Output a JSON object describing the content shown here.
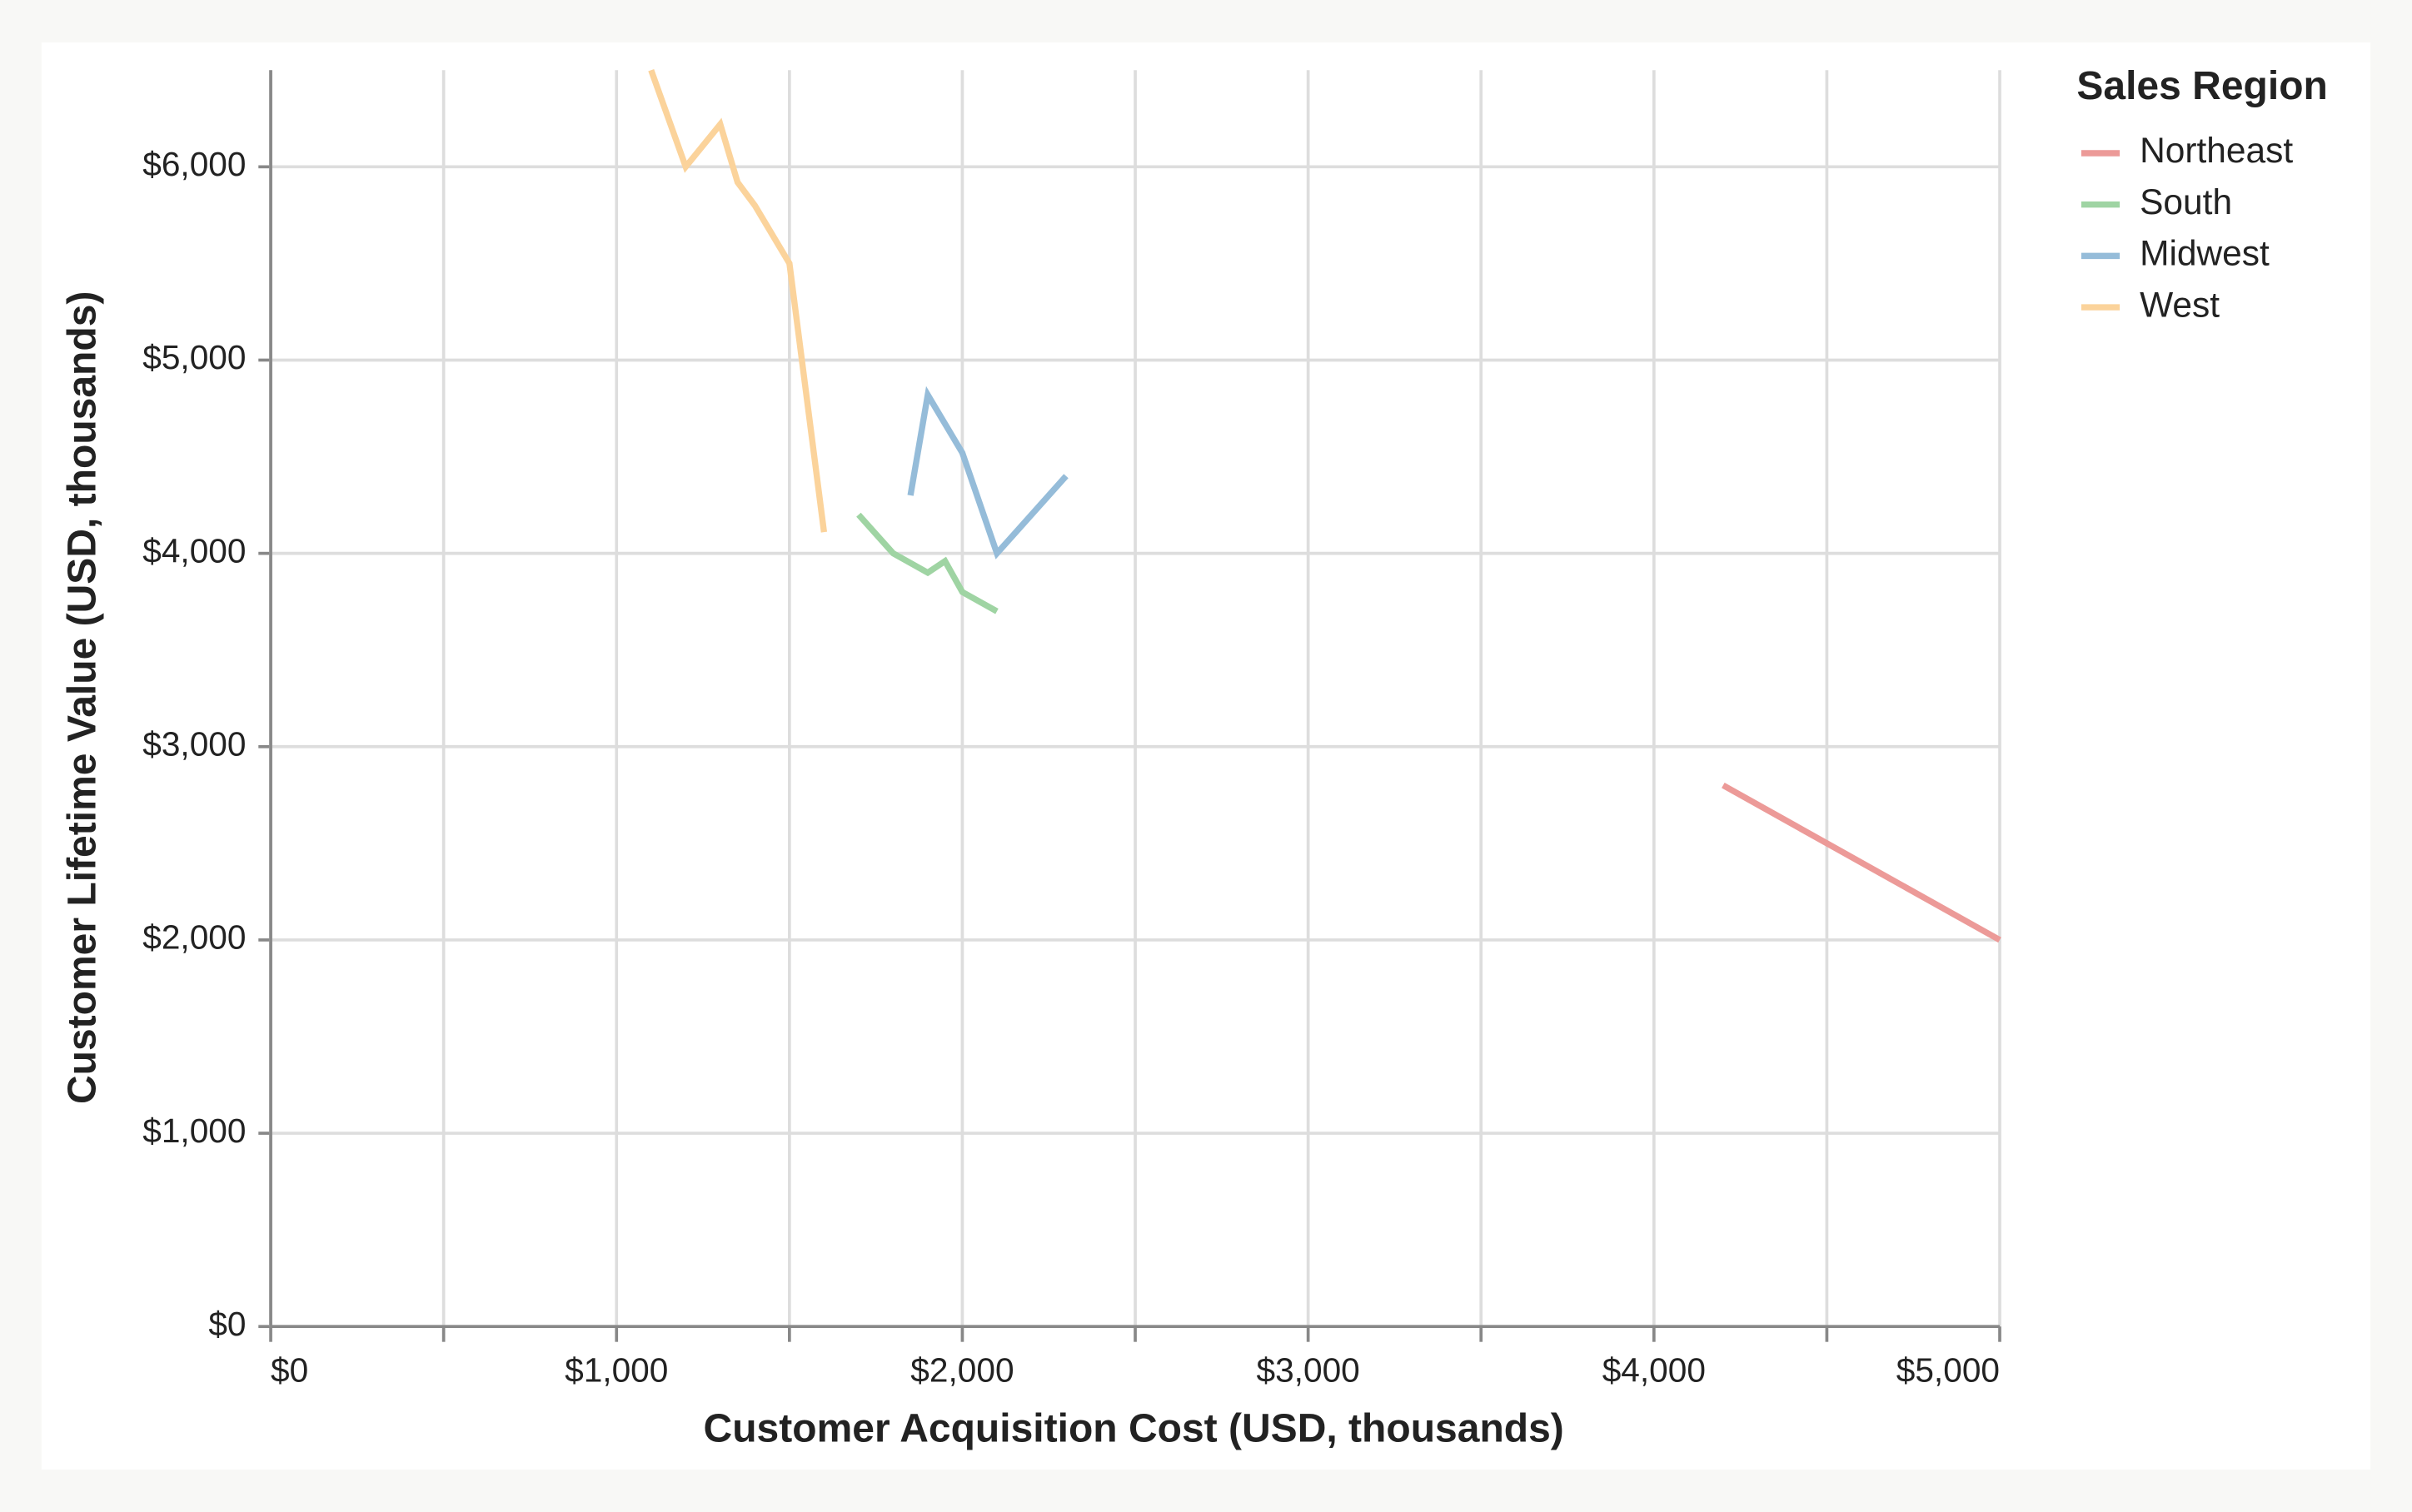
{
  "chart_data": {
    "type": "line",
    "x_label": "Customer Acquisition Cost (USD, thousands)",
    "y_label": "Customer Lifetime Value (USD, thousands)",
    "legend_title": "Sales Region",
    "legend_position": "right",
    "grid": true,
    "xlim": [
      0,
      5000
    ],
    "ylim": [
      0,
      6500
    ],
    "xticks": [
      {
        "value": 0,
        "label": "$0"
      },
      {
        "value": 1000,
        "label": "$1,000"
      },
      {
        "value": 2000,
        "label": "$2,000"
      },
      {
        "value": 3000,
        "label": "$3,000"
      },
      {
        "value": 4000,
        "label": "$4,000"
      },
      {
        "value": 5000,
        "label": "$5,000"
      }
    ],
    "xminorticks": [
      500,
      1500,
      2500,
      3500,
      4500
    ],
    "yticks": [
      {
        "value": 0,
        "label": "$0"
      },
      {
        "value": 1000,
        "label": "$1,000"
      },
      {
        "value": 2000,
        "label": "$2,000"
      },
      {
        "value": 3000,
        "label": "$3,000"
      },
      {
        "value": 4000,
        "label": "$4,000"
      },
      {
        "value": 5000,
        "label": "$5,000"
      },
      {
        "value": 6000,
        "label": "$6,000"
      }
    ],
    "series": [
      {
        "name": "Northeast",
        "color": "#ec9a98",
        "x": [
          4200,
          5000
        ],
        "values": [
          2800,
          2000
        ]
      },
      {
        "name": "South",
        "color": "#9fd4a3",
        "x": [
          1700,
          1800,
          1900,
          1950,
          2000,
          2100
        ],
        "values": [
          4200,
          4000,
          3900,
          3960,
          3800,
          3700
        ]
      },
      {
        "name": "Midwest",
        "color": "#95bcd9",
        "x": [
          1850,
          1900,
          2000,
          2100,
          2300
        ],
        "values": [
          4300,
          4820,
          4520,
          4000,
          4400
        ]
      },
      {
        "name": "West",
        "color": "#fbd39b",
        "x": [
          1100,
          1200,
          1300,
          1350,
          1400,
          1500,
          1600
        ],
        "values": [
          6500,
          6000,
          6220,
          5920,
          5800,
          5500,
          4110
        ]
      }
    ]
  }
}
